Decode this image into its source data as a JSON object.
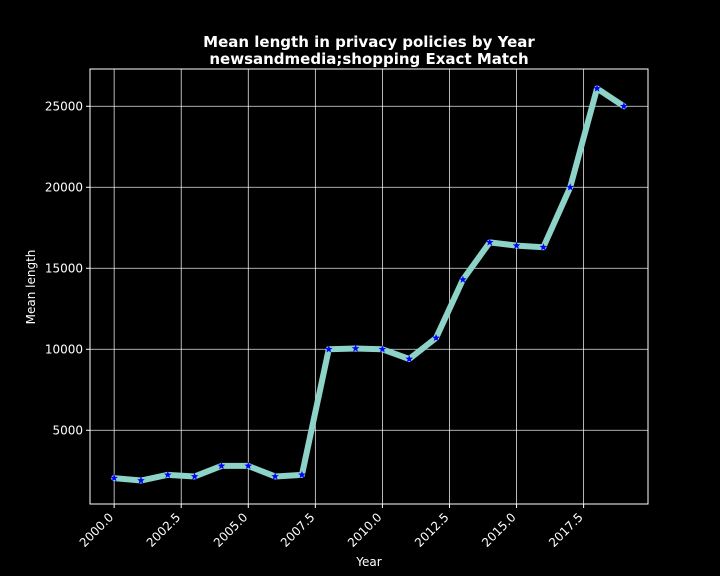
{
  "chart_data": {
    "type": "line",
    "title_line1": "Mean length in privacy policies by Year",
    "title_line2": "newsandmedia;shopping Exact Match",
    "xlabel": "Year",
    "ylabel": "Mean length",
    "xlim": [
      1999.1,
      2019.9
    ],
    "ylim": [
      450,
      27300
    ],
    "xticks": [
      2000,
      2002.5,
      2005,
      2007.5,
      2010,
      2012.5,
      2015,
      2017.5
    ],
    "xtick_labels": [
      "2000.0",
      "2002.5",
      "2005.0",
      "2007.5",
      "2010.0",
      "2012.5",
      "2015.0",
      "2017.5"
    ],
    "yticks": [
      5000,
      10000,
      15000,
      20000,
      25000
    ],
    "ytick_labels": [
      "5000",
      "10000",
      "15000",
      "20000",
      "25000"
    ],
    "grid": true,
    "colors": {
      "line": "#8dd3c7",
      "marker": "#0000ff",
      "background": "#000000",
      "text": "#ffffff"
    },
    "marker": "star",
    "series": [
      {
        "x": [
          2000,
          2001,
          2002,
          2003,
          2004,
          2005,
          2006,
          2007,
          2008,
          2009,
          2010,
          2011,
          2012,
          2013,
          2014,
          2015,
          2016,
          2017,
          2018,
          2019
        ],
        "values": [
          2050,
          1900,
          2250,
          2150,
          2800,
          2800,
          2150,
          2250,
          10000,
          10050,
          10000,
          9400,
          10700,
          14300,
          16600,
          16400,
          16300,
          20000,
          26100,
          25000
        ]
      }
    ]
  }
}
